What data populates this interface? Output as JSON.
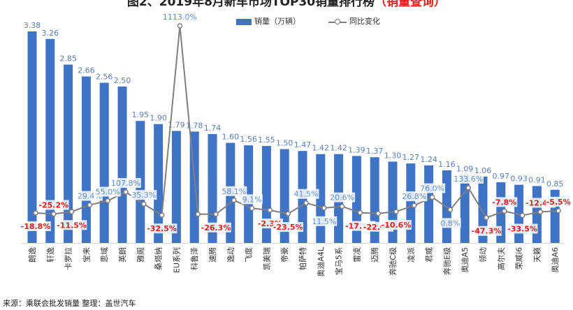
{
  "title": {
    "prefix": "图2、2019年8月新车市场TOP30销量排行榜",
    "highlight": "（销量查询）"
  },
  "legend": {
    "bar_label": "销量（万辆）",
    "line_label": "同比变化"
  },
  "footer": {
    "source": "来源：乘联会批发销量   整理：盖世汽车"
  },
  "colors": {
    "bar": "#3f73c5",
    "bar_light": "#6b95d8",
    "line": "#7f7f7f",
    "neg": "#e0201c",
    "pos": "#5b8cd6"
  },
  "chart_data": {
    "type": "bar",
    "categories": [
      "朗逸",
      "轩逸",
      "卡罗拉",
      "宝来",
      "思域",
      "英朗",
      "雅阁",
      "桑塔纳",
      "EU系列",
      "科鲁泽",
      "速腾",
      "逸动",
      "飞度",
      "凯美瑞",
      "帝豪",
      "帕萨特",
      "奥迪A4L",
      "宝马5系",
      "雷凌",
      "迈腾",
      "奔驰C级",
      "凌派",
      "君威",
      "奔驰E级",
      "奥迪A5",
      "领动",
      "高尔夫",
      "荣威i6",
      "天籁",
      "奥迪A6"
    ],
    "series": [
      {
        "name": "销量（万辆）",
        "type": "bar",
        "axis": "left",
        "values": [
          3.38,
          3.26,
          2.85,
          2.66,
          2.56,
          2.5,
          1.95,
          1.9,
          1.79,
          1.78,
          1.74,
          1.6,
          1.56,
          1.55,
          1.5,
          1.47,
          1.42,
          1.42,
          1.39,
          1.37,
          1.3,
          1.27,
          1.24,
          1.16,
          1.09,
          1.06,
          0.97,
          0.93,
          0.91,
          0.85
        ]
      },
      {
        "name": "同比变化",
        "type": "line",
        "axis": "right",
        "unit": "%",
        "values": [
          -18.8,
          -25.2,
          -11.5,
          29.4,
          55.0,
          107.8,
          35.3,
          -32.5,
          1113.0,
          -26.3,
          -26.3,
          58.1,
          9.1,
          -2.3,
          -23.5,
          41.5,
          11.5,
          20.6,
          -17.1,
          -22.0,
          -10.6,
          26.8,
          76.0,
          0.8,
          133.6,
          -47.3,
          -7.8,
          -33.5,
          -12.4,
          -5.5
        ]
      }
    ],
    "bar_labels": [
      "3.38",
      "3.26",
      "2.85",
      "2.66",
      "2.56",
      "2.50",
      "1.95",
      "1.90",
      "1.79",
      "1.78",
      "1.74",
      "1.60",
      "1.56",
      "1.55",
      "1.50",
      "1.47",
      "1.42",
      "1.42",
      "1.39",
      "1.37",
      "1.30",
      "1.27",
      "1.24",
      "1.16",
      "1.09",
      "1.06",
      "0.97",
      "0.93",
      "0.91",
      "0.85"
    ],
    "line_labels": [
      "-18.8%",
      "-25.2%",
      "-11.5%",
      "29.4%",
      "55.0%",
      "107.8%",
      "35.3%",
      "-32.5%",
      "1113.0%",
      "",
      "-26.3%",
      "58.1%",
      "9.1%",
      "-2.3%",
      "-23.5%",
      "41.5%",
      "11.5%",
      "20.6%",
      "-17.1%",
      "-22.0%",
      "-10.6%",
      "26.8%",
      "76.0%",
      "0.8%",
      "133.6%",
      "-47.3%",
      "-7.8%",
      "-33.5%",
      "-12.4%",
      "-5.5%"
    ],
    "line_label_pos": [
      "below",
      "above",
      "below",
      "above",
      "above",
      "above",
      "above",
      "below",
      "above",
      "none",
      "below",
      "above",
      "above",
      "below",
      "below",
      "above",
      "below",
      "above",
      "below",
      "below",
      "below",
      "above",
      "above",
      "below",
      "above",
      "below",
      "above",
      "below",
      "above",
      "above"
    ],
    "ylim_bars": [
      0,
      3.6
    ],
    "ylim_line": [
      -100,
      1150
    ],
    "grid": false,
    "legend_position": "top-center",
    "x_tick_rotation": -90
  }
}
